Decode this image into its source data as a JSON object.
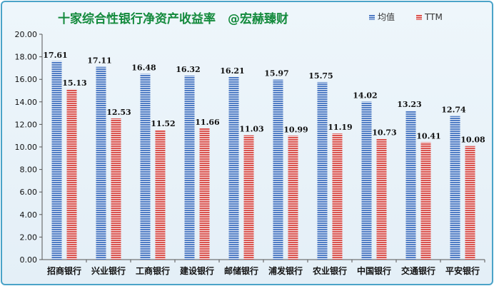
{
  "chart_data": {
    "type": "bar",
    "title": "十家综合性银行净资产收益率　@宏赫臻财",
    "categories": [
      "招商银行",
      "兴业银行",
      "工商银行",
      "建设银行",
      "邮储银行",
      "浦发银行",
      "农业银行",
      "中国银行",
      "交通银行",
      "平安银行"
    ],
    "series": [
      {
        "name": "均值",
        "color": "#4f7cc4",
        "values": [
          17.61,
          17.11,
          16.48,
          16.32,
          16.21,
          15.97,
          15.75,
          14.02,
          13.23,
          12.74
        ]
      },
      {
        "name": "TTM",
        "color": "#d9534f",
        "values": [
          15.13,
          12.53,
          11.52,
          11.66,
          11.03,
          10.99,
          11.19,
          10.73,
          10.41,
          10.08
        ]
      }
    ],
    "yticks": [
      "0.00",
      "2.00",
      "4.00",
      "6.00",
      "8.00",
      "10.00",
      "12.00",
      "14.00",
      "16.00",
      "18.00",
      "20.00"
    ],
    "ylim": [
      0,
      20
    ],
    "xlabel": "",
    "ylabel": "",
    "legend": "top-right",
    "grid": false
  }
}
